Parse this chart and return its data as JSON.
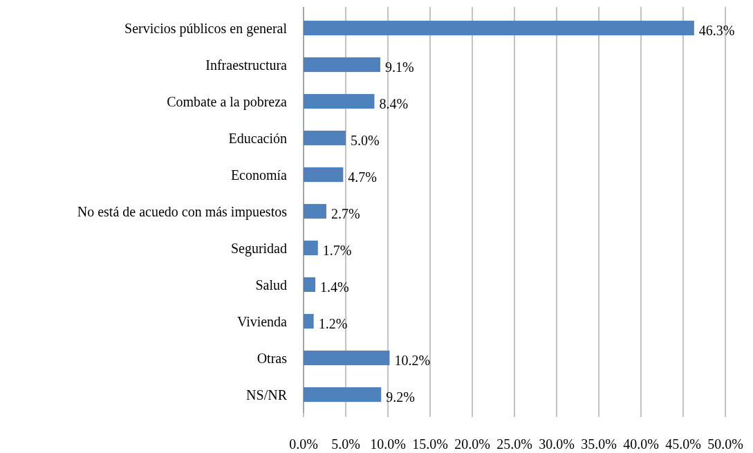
{
  "chart_data": {
    "type": "bar",
    "orientation": "horizontal",
    "categories": [
      "Servicios públicos en general",
      "Infraestructura",
      "Combate a la pobreza",
      "Educación",
      "Economía",
      "No está de acuedo con más impuestos",
      "Seguridad",
      "Salud",
      "Vivienda",
      "Otras",
      "NS/NR"
    ],
    "values": [
      46.3,
      9.1,
      8.4,
      5.0,
      4.7,
      2.7,
      1.7,
      1.4,
      1.2,
      10.2,
      9.2
    ],
    "value_labels": [
      "46.3%",
      "9.1%",
      "8.4%",
      "5.0%",
      "4.7%",
      "2.7%",
      "1.7%",
      "1.4%",
      "1.2%",
      "10.2%",
      "9.2%"
    ],
    "color": "#4f81bd",
    "xlim": [
      0,
      50
    ],
    "xticks": [
      {
        "value": 0,
        "label": "0.0%"
      },
      {
        "value": 5,
        "label": "5.0%"
      },
      {
        "value": 10,
        "label": "10.0%"
      },
      {
        "value": 15,
        "label": "15.0%"
      },
      {
        "value": 20,
        "label": "20.0%"
      },
      {
        "value": 25,
        "label": "25.0%"
      },
      {
        "value": 30,
        "label": "30.0%"
      },
      {
        "value": 35,
        "label": "35.0%"
      },
      {
        "value": 40,
        "label": "40.0%"
      },
      {
        "value": 45,
        "label": "45.0%"
      },
      {
        "value": 50,
        "label": "50.0%"
      }
    ],
    "grid": "x"
  }
}
